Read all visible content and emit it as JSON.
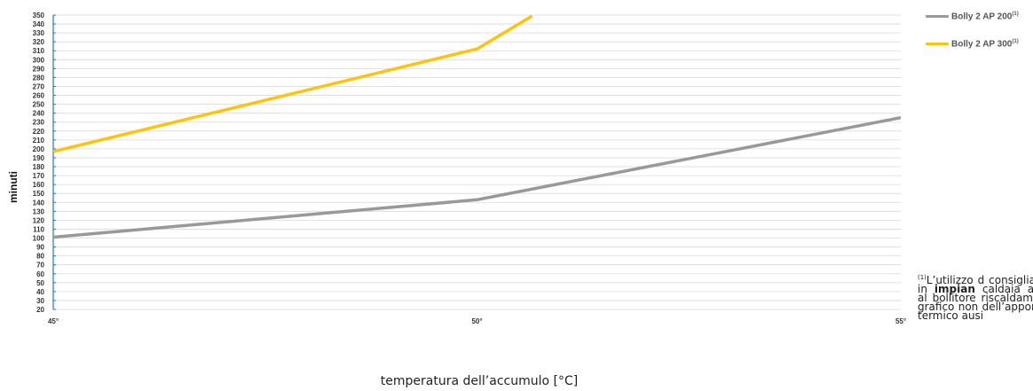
{
  "chart_data": {
    "type": "line",
    "x_categories": [
      "45°",
      "50°",
      "55°"
    ],
    "x": [
      45,
      50,
      55
    ],
    "xlabel": "temperatura dell’accumulo [°C]",
    "ylabel": "minuti",
    "ylim": [
      20,
      350
    ],
    "ytick_step": 10,
    "grid": true,
    "legend_position": "top-right",
    "series": [
      {
        "name": "Bolly 2 AP 200",
        "superscript": "(1)",
        "color": "#999999",
        "points": [
          [
            45,
            101
          ],
          [
            50,
            143
          ],
          [
            55,
            235
          ]
        ]
      },
      {
        "name": "Bolly 2 AP 300",
        "superscript": "(1)",
        "color": "#FFC20E",
        "points": [
          [
            45,
            197
          ],
          [
            50,
            312
          ],
          [
            50.65,
            349
          ]
        ]
      }
    ]
  },
  "footnote": {
    "marker": "(1)",
    "text_start": "L’utilizzo d",
    "text_mid": "consigliato in ",
    "bold": "impian",
    "text_end": "caldaia aus al bollitore riscaldamen grafico non dell’apporto termico ausi"
  }
}
